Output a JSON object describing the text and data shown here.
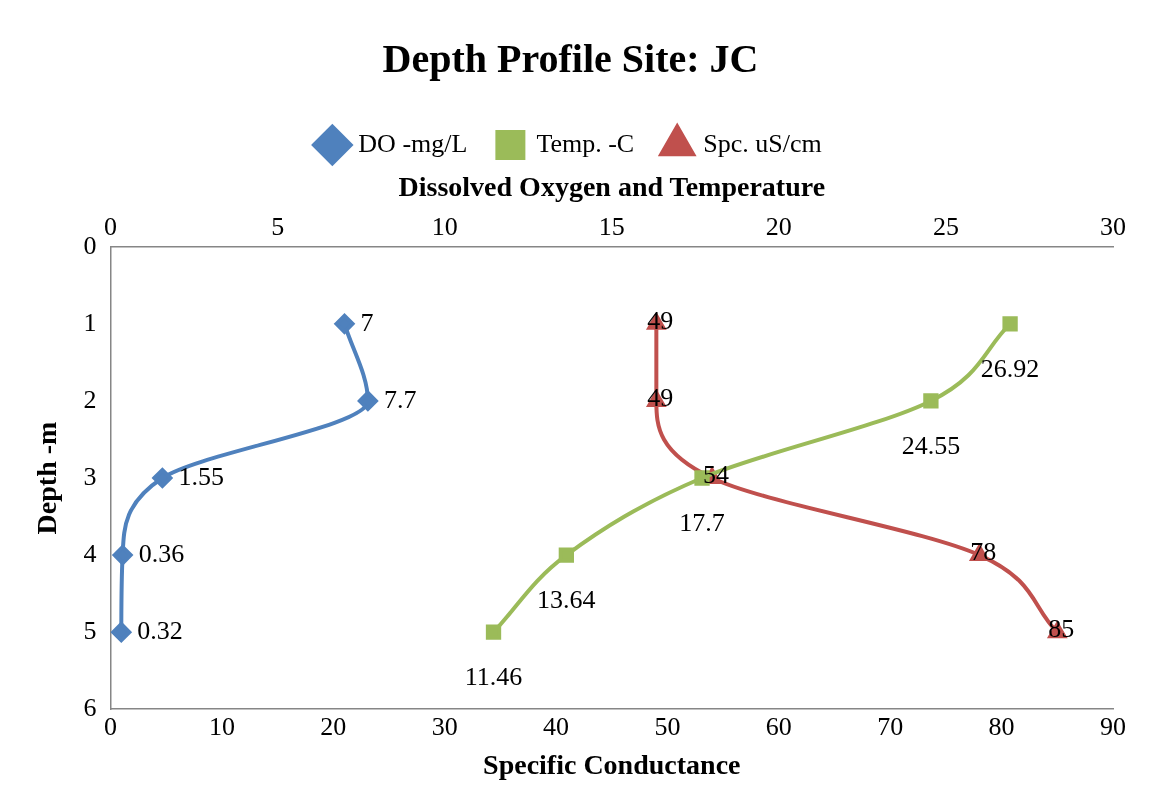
{
  "chart_data": {
    "type": "line",
    "orientation": "horizontal",
    "title": "Depth Profile Site: JC",
    "xlabel": "Specific Conductance",
    "x2label": "Dissolved Oxygen and Temperature",
    "ylabel": "Depth -m",
    "xlim": [
      0,
      90
    ],
    "xticks": [
      0,
      10,
      20,
      30,
      40,
      50,
      60,
      70,
      80,
      90
    ],
    "x2lim": [
      0,
      30
    ],
    "x2ticks": [
      0,
      5,
      10,
      15,
      20,
      25,
      30
    ],
    "ylim": [
      6,
      0
    ],
    "yticks": [
      0,
      1,
      2,
      3,
      4,
      5,
      6
    ],
    "grid": false,
    "legend": "top",
    "data_labels": true,
    "series": [
      {
        "name": "DO -mg/L",
        "color": "#4f81bd",
        "marker": "diamond",
        "axis": "x2",
        "x": [
          1,
          2,
          3,
          4,
          5
        ],
        "values": [
          7,
          7.7,
          1.55,
          0.36,
          0.32
        ]
      },
      {
        "name": "Temp. -C",
        "color": "#9bbb59",
        "marker": "square",
        "axis": "x2",
        "x": [
          1,
          2,
          3,
          4,
          5
        ],
        "values": [
          26.92,
          24.55,
          17.7,
          13.64,
          11.46
        ]
      },
      {
        "name": "Spc. uS/cm",
        "color": "#c0504d",
        "marker": "triangle",
        "x": [
          1,
          2,
          3,
          4,
          5
        ],
        "values": [
          49,
          49,
          54,
          78,
          85
        ]
      }
    ]
  }
}
